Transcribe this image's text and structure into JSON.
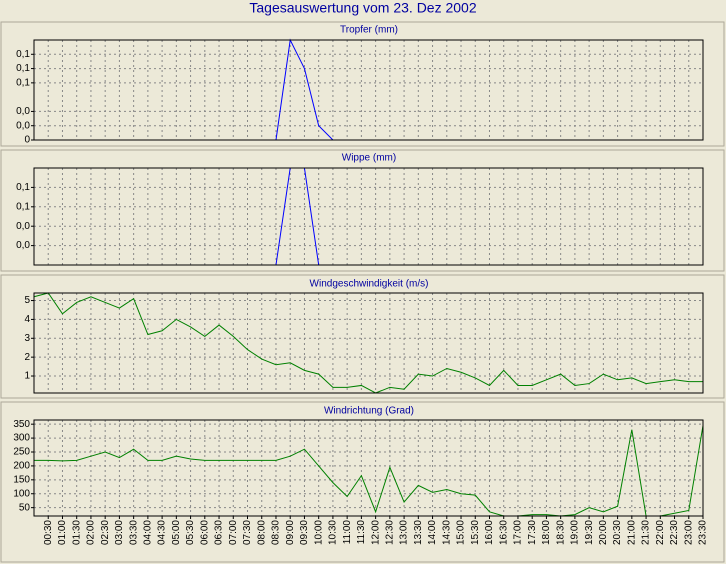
{
  "title": "Tagesauswertung vom 23. Dez 2002",
  "chart_data": [
    {
      "type": "line",
      "title": "Tropfer (mm)",
      "color": "#0000ff",
      "grid": true,
      "ylim": [
        0,
        0.14
      ],
      "yticks": [
        {
          "value": 0.12,
          "label": "0,1"
        },
        {
          "value": 0.1,
          "label": "0,1"
        },
        {
          "value": 0.08,
          "label": "0,1"
        },
        {
          "value": 0.04,
          "label": "0,0"
        },
        {
          "value": 0.02,
          "label": "0,0"
        },
        0
      ],
      "values": [
        0,
        0,
        0,
        0,
        0,
        0,
        0,
        0,
        0,
        0,
        0,
        0,
        0,
        0,
        0,
        0,
        0,
        0,
        0.14,
        0.1,
        0.02,
        0,
        0,
        0,
        0,
        0,
        0,
        0,
        0,
        0,
        0,
        0,
        0,
        0,
        0,
        0,
        0,
        0,
        0,
        0,
        0,
        0,
        0,
        0,
        0,
        0,
        0,
        0
      ]
    },
    {
      "type": "line",
      "title": "Wippe (mm)",
      "color": "#0000ff",
      "grid": true,
      "ylim": [
        0,
        0.1
      ],
      "yticks": [
        {
          "value": 0.08,
          "label": "0,1"
        },
        {
          "value": 0.06,
          "label": "0,1"
        },
        {
          "value": 0.04,
          "label": "0,0"
        },
        {
          "value": 0.02,
          "label": "0,0"
        }
      ],
      "values": [
        0,
        0,
        0,
        0,
        0,
        0,
        0,
        0,
        0,
        0,
        0,
        0,
        0,
        0,
        0,
        0,
        0,
        0,
        0.1,
        0.1,
        0,
        0,
        0,
        0,
        0,
        0,
        0,
        0,
        0,
        0,
        0,
        0,
        0,
        0,
        0,
        0,
        0,
        0,
        0,
        0,
        0,
        0,
        0,
        0,
        0,
        0,
        0,
        0
      ]
    },
    {
      "type": "line",
      "title": "Windgeschwindigkeit (m/s)",
      "color": "#008000",
      "grid": true,
      "ylim": [
        0.1,
        5.4
      ],
      "yticks": [
        5,
        4,
        3,
        2,
        1
      ],
      "values": [
        5.2,
        5.4,
        4.3,
        4.9,
        5.2,
        4.9,
        4.6,
        5.1,
        3.2,
        3.4,
        4.0,
        3.6,
        3.1,
        3.7,
        3.1,
        2.4,
        1.9,
        1.6,
        1.7,
        1.3,
        1.1,
        0.4,
        0.4,
        0.5,
        0.1,
        0.4,
        0.3,
        1.1,
        1.0,
        1.4,
        1.2,
        0.9,
        0.5,
        1.3,
        0.5,
        0.5,
        0.8,
        1.1,
        0.5,
        0.6,
        1.1,
        0.8,
        0.9,
        0.6,
        0.7,
        0.8,
        0.7,
        0.7
      ]
    },
    {
      "type": "line",
      "title": "Windrichtung (Grad)",
      "color": "#008000",
      "grid": true,
      "ylim": [
        20,
        365
      ],
      "yticks": [
        350,
        300,
        250,
        200,
        150,
        100,
        50
      ],
      "categories": [
        null,
        "00:30",
        "01:00",
        "01:30",
        "02:00",
        "02:30",
        "03:00",
        "03:30",
        "04:00",
        "04:30",
        "05:00",
        "05:30",
        "06:00",
        "06:30",
        "07:00",
        "07:30",
        "08:00",
        "08:30",
        "09:00",
        "09:30",
        "10:00",
        "10:30",
        "11:00",
        "11:30",
        "12:00",
        "12:30",
        "13:00",
        "13:30",
        "14:00",
        "14:30",
        "15:00",
        "15:30",
        "16:00",
        "16:30",
        "17:00",
        "17:30",
        "18:00",
        "18:30",
        "19:00",
        "19:30",
        "20:00",
        "20:30",
        "21:00",
        "21:30",
        "22:00",
        "22:30",
        "23:00",
        "23:30"
      ],
      "values": [
        220,
        220,
        218,
        220,
        235,
        250,
        230,
        260,
        220,
        220,
        235,
        225,
        220,
        220,
        220,
        220,
        220,
        220,
        235,
        260,
        200,
        140,
        90,
        165,
        35,
        195,
        70,
        130,
        105,
        115,
        100,
        95,
        35,
        20,
        20,
        25,
        25,
        20,
        25,
        50,
        35,
        55,
        330,
        20,
        20,
        30,
        40,
        345
      ]
    }
  ]
}
